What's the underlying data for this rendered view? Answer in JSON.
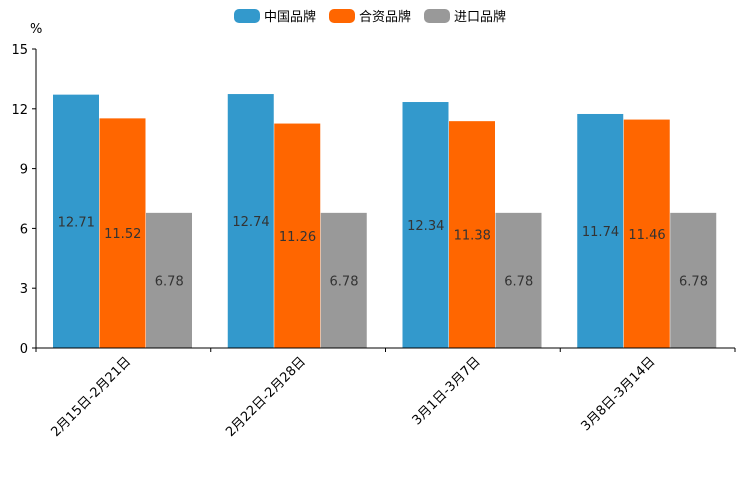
{
  "chart_data": {
    "type": "bar",
    "title": "",
    "xlabel": "",
    "ylabel": "%",
    "ylim": [
      0,
      15
    ],
    "yticks": [
      0,
      3,
      6,
      9,
      12,
      15
    ],
    "categories": [
      "2月15日-2月21日",
      "2月22日-2月28日",
      "3月1日-3月7日",
      "3月8日-3月14日"
    ],
    "series": [
      {
        "name": "中国品牌",
        "color": "#3399cc",
        "values": [
          12.71,
          12.74,
          12.34,
          11.74
        ],
        "labels": [
          "12.71",
          "12.74",
          "12.34",
          "11.74"
        ]
      },
      {
        "name": "合资品牌",
        "color": "#ff6600",
        "values": [
          11.52,
          11.26,
          11.38,
          11.46
        ],
        "labels": [
          "11.52",
          "11.26",
          "11.38",
          "11.46"
        ]
      },
      {
        "name": "进口品牌",
        "color": "#999999",
        "values": [
          6.78,
          6.78,
          6.78,
          6.78
        ],
        "labels": [
          "6.78",
          "6.78",
          "6.78",
          "6.78"
        ]
      }
    ],
    "legend_position": "top-center",
    "grid": false
  }
}
